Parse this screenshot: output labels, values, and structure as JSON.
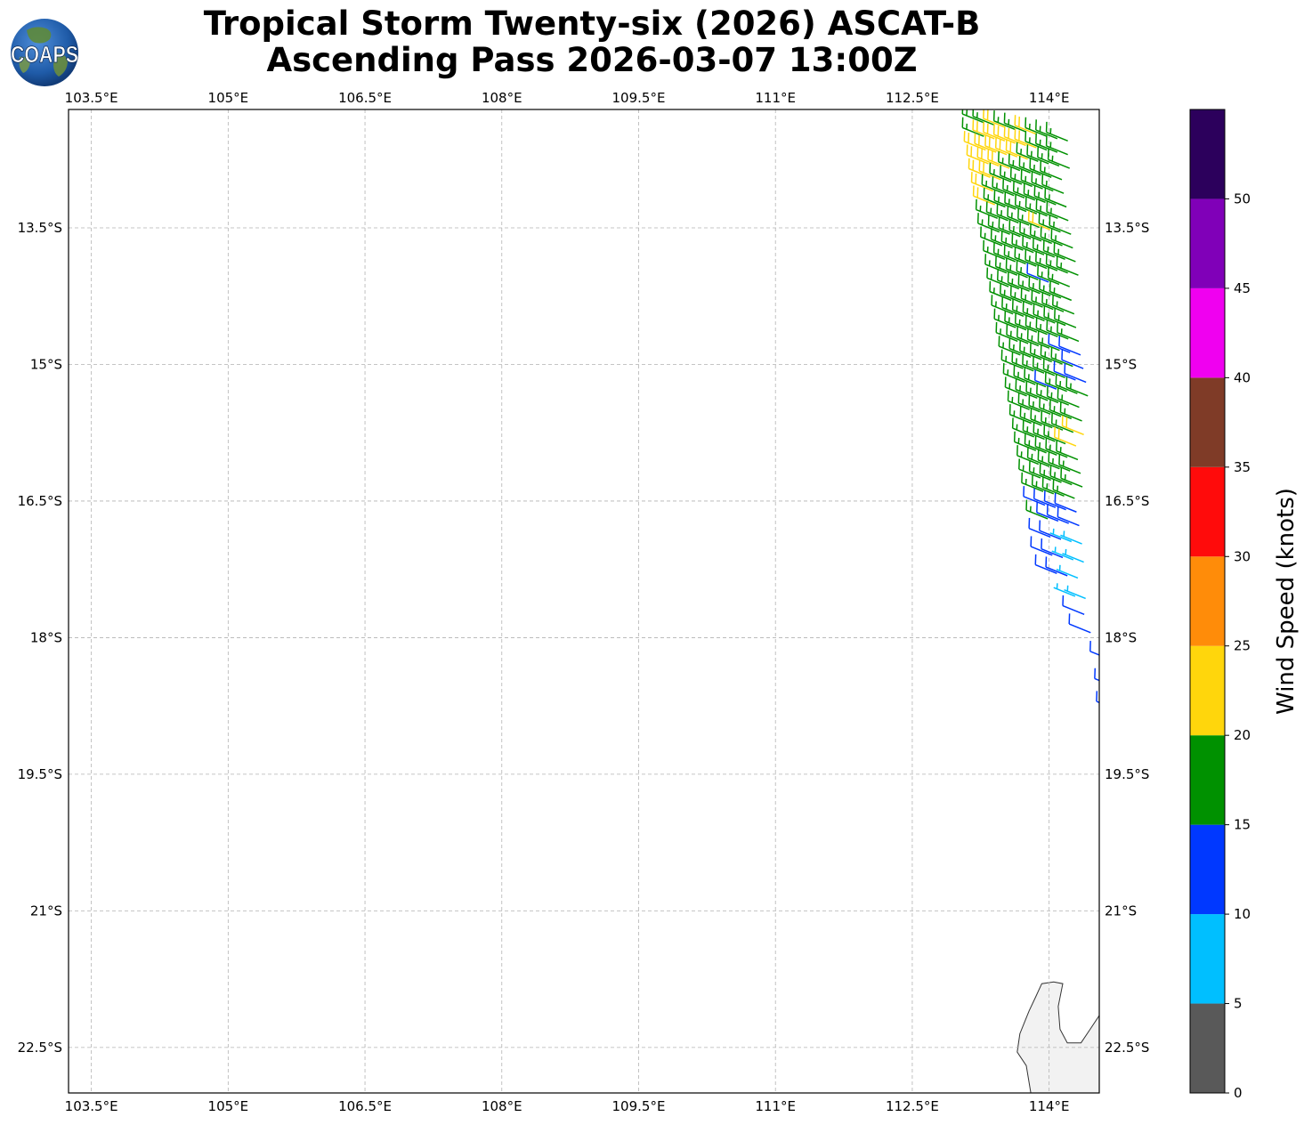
{
  "header": {
    "title_line1": "Tropical Storm Twenty-six (2026) ASCAT-B",
    "title_line2": "Ascending Pass 2026-03-07 13:00Z",
    "logo_text": "COAPS",
    "logo_icon": "globe-icon"
  },
  "map": {
    "lon_range": [
      103.25,
      114.55
    ],
    "lat_range": [
      -23.0,
      -12.2
    ],
    "lon_ticks": [
      "103.5°E",
      "105°E",
      "106.5°E",
      "108°E",
      "109.5°E",
      "111°E",
      "112.5°E",
      "114°E"
    ],
    "lon_tick_values": [
      103.5,
      105,
      106.5,
      108,
      109.5,
      111,
      112.5,
      114
    ],
    "lat_ticks": [
      "13.5°S",
      "15°S",
      "16.5°S",
      "18°S",
      "19.5°S",
      "21°S",
      "22.5°S"
    ],
    "lat_tick_values": [
      -13.5,
      -15,
      -16.5,
      -18,
      -19.5,
      -21,
      -22.5
    ],
    "gridlines": true,
    "land_color": "#f2f2f2",
    "coastline": [
      [
        113.8,
        -23.0
      ],
      [
        113.75,
        -22.7
      ],
      [
        113.65,
        -22.55
      ],
      [
        113.68,
        -22.35
      ],
      [
        113.78,
        -22.1
      ],
      [
        113.85,
        -21.95
      ],
      [
        113.92,
        -21.8
      ],
      [
        114.05,
        -21.78
      ],
      [
        114.15,
        -21.8
      ],
      [
        114.1,
        -22.05
      ],
      [
        114.12,
        -22.3
      ],
      [
        114.2,
        -22.45
      ],
      [
        114.35,
        -22.45
      ],
      [
        114.45,
        -22.3
      ],
      [
        114.55,
        -22.15
      ],
      [
        114.55,
        -23.0
      ]
    ]
  },
  "chart_data": {
    "type": "wind-barbs",
    "units": "knots",
    "swath": {
      "top_row_lat": -12.2,
      "row_spacing_deg": 0.105,
      "col_spacing_deg": 0.115
    },
    "rows": [
      {
        "lat": -12.25,
        "lon_start": 113.05,
        "speeds": [
          19,
          19,
          23,
          19,
          19,
          23,
          19,
          19,
          19
        ]
      },
      {
        "lat": -12.4,
        "lon_start": 113.05,
        "speeds": [
          18,
          22,
          22,
          22,
          23,
          22,
          19,
          19,
          19
        ]
      },
      {
        "lat": -12.55,
        "lon_start": 113.07,
        "speeds": [
          22,
          22,
          23,
          22,
          22,
          18,
          19,
          19,
          19
        ]
      },
      {
        "lat": -12.7,
        "lon_start": 113.1,
        "speeds": [
          22,
          22,
          22,
          19,
          19,
          19,
          19,
          18
        ]
      },
      {
        "lat": -12.85,
        "lon_start": 113.12,
        "speeds": [
          22,
          22,
          19,
          19,
          19,
          18,
          19,
          19
        ]
      },
      {
        "lat": -13.0,
        "lon_start": 113.15,
        "speeds": [
          22,
          19,
          19,
          19,
          19,
          19,
          19,
          19
        ]
      },
      {
        "lat": -13.15,
        "lon_start": 113.17,
        "speeds": [
          22,
          19,
          19,
          19,
          19,
          19,
          19,
          19
        ]
      },
      {
        "lat": -13.3,
        "lon_start": 113.2,
        "speeds": [
          19,
          19,
          19,
          19,
          19,
          22,
          19,
          19
        ]
      },
      {
        "lat": -13.45,
        "lon_start": 113.22,
        "speeds": [
          19,
          19,
          19,
          19,
          19,
          19,
          19,
          19
        ]
      },
      {
        "lat": -13.6,
        "lon_start": 113.25,
        "speeds": [
          19,
          19,
          19,
          19,
          19,
          19,
          19,
          19
        ]
      },
      {
        "lat": -13.75,
        "lon_start": 113.28,
        "speeds": [
          19,
          19,
          19,
          19,
          19,
          19,
          19,
          19
        ]
      },
      {
        "lat": -13.9,
        "lon_start": 113.3,
        "speeds": [
          19,
          19,
          19,
          19,
          14,
          19,
          19
        ]
      },
      {
        "lat": -14.05,
        "lon_start": 113.32,
        "speeds": [
          19,
          19,
          19,
          19,
          19,
          19,
          19
        ]
      },
      {
        "lat": -14.2,
        "lon_start": 113.35,
        "speeds": [
          19,
          19,
          19,
          19,
          19,
          19,
          19
        ]
      },
      {
        "lat": -14.35,
        "lon_start": 113.37,
        "speeds": [
          19,
          19,
          19,
          19,
          19,
          19,
          19
        ]
      },
      {
        "lat": -14.5,
        "lon_start": 113.4,
        "speeds": [
          19,
          19,
          19,
          19,
          19,
          19,
          19
        ]
      },
      {
        "lat": -14.65,
        "lon_start": 113.42,
        "speeds": [
          19,
          19,
          19,
          19,
          19,
          14,
          14
        ]
      },
      {
        "lat": -14.8,
        "lon_start": 113.45,
        "speeds": [
          19,
          19,
          19,
          19,
          19,
          19,
          14
        ]
      },
      {
        "lat": -14.95,
        "lon_start": 113.48,
        "speeds": [
          19,
          19,
          19,
          19,
          19,
          14,
          14
        ]
      },
      {
        "lat": -15.1,
        "lon_start": 113.5,
        "speeds": [
          19,
          19,
          19,
          14,
          19,
          19,
          19
        ]
      },
      {
        "lat": -15.25,
        "lon_start": 113.52,
        "speeds": [
          19,
          19,
          19,
          19,
          19,
          19
        ]
      },
      {
        "lat": -15.4,
        "lon_start": 113.55,
        "speeds": [
          19,
          19,
          19,
          19,
          19,
          19
        ]
      },
      {
        "lat": -15.55,
        "lon_start": 113.57,
        "speeds": [
          19,
          19,
          19,
          19,
          19,
          22
        ]
      },
      {
        "lat": -15.7,
        "lon_start": 113.6,
        "speeds": [
          19,
          19,
          19,
          19,
          22
        ]
      },
      {
        "lat": -15.85,
        "lon_start": 113.62,
        "speeds": [
          19,
          19,
          19,
          19,
          19
        ]
      },
      {
        "lat": -16.0,
        "lon_start": 113.65,
        "speeds": [
          19,
          19,
          19,
          19,
          19
        ]
      },
      {
        "lat": -16.15,
        "lon_start": 113.67,
        "speeds": [
          19,
          19,
          19,
          19,
          19
        ]
      },
      {
        "lat": -16.3,
        "lon_start": 113.7,
        "speeds": [
          19,
          19,
          19,
          19
        ]
      },
      {
        "lat": -16.45,
        "lon_start": 113.72,
        "speeds": [
          14,
          14,
          14,
          14
        ]
      },
      {
        "lat": -16.6,
        "lon_start": 113.75,
        "speeds": [
          19,
          14,
          14,
          14
        ]
      },
      {
        "lat": -16.8,
        "lon_start": 113.78,
        "speeds": [
          14,
          14,
          9,
          9
        ]
      },
      {
        "lat": -17.0,
        "lon_start": 113.8,
        "speeds": [
          14,
          14,
          9,
          9
        ]
      },
      {
        "lat": -17.2,
        "lon_start": 113.85,
        "speeds": [
          14,
          14,
          9
        ]
      },
      {
        "lat": -17.45,
        "lon_start": 114.05,
        "speeds": [
          9,
          9
        ]
      },
      {
        "lat": -17.65,
        "lon_start": 114.15,
        "speeds": [
          14
        ]
      },
      {
        "lat": -17.85,
        "lon_start": 114.22,
        "speeds": [
          14
        ]
      },
      {
        "lat": -18.15,
        "lon_start": 114.45,
        "speeds": [
          14
        ]
      },
      {
        "lat": -18.45,
        "lon_start": 114.5,
        "speeds": [
          14
        ]
      },
      {
        "lat": -18.7,
        "lon_start": 114.52,
        "speeds": [
          14
        ]
      }
    ]
  },
  "colorbar": {
    "label": "Wind Speed (knots)",
    "min": 0,
    "max": 55,
    "tick_values": [
      0,
      5,
      10,
      15,
      20,
      25,
      30,
      35,
      40,
      45,
      50
    ],
    "tick_labels": [
      "0",
      "5",
      "10",
      "15",
      "20",
      "25",
      "30",
      "35",
      "40",
      "45",
      "50"
    ],
    "bins": [
      {
        "from": 0,
        "to": 5,
        "color": "#595959"
      },
      {
        "from": 5,
        "to": 10,
        "color": "#00bfff"
      },
      {
        "from": 10,
        "to": 15,
        "color": "#0038ff"
      },
      {
        "from": 15,
        "to": 20,
        "color": "#009100"
      },
      {
        "from": 20,
        "to": 25,
        "color": "#ffd60c"
      },
      {
        "from": 25,
        "to": 30,
        "color": "#ff8c09"
      },
      {
        "from": 30,
        "to": 35,
        "color": "#ff0b0b"
      },
      {
        "from": 35,
        "to": 40,
        "color": "#7f3b27"
      },
      {
        "from": 40,
        "to": 45,
        "color": "#f000f0"
      },
      {
        "from": 45,
        "to": 50,
        "color": "#8000b8"
      },
      {
        "from": 50,
        "to": 55,
        "color": "#2c005c"
      }
    ]
  }
}
